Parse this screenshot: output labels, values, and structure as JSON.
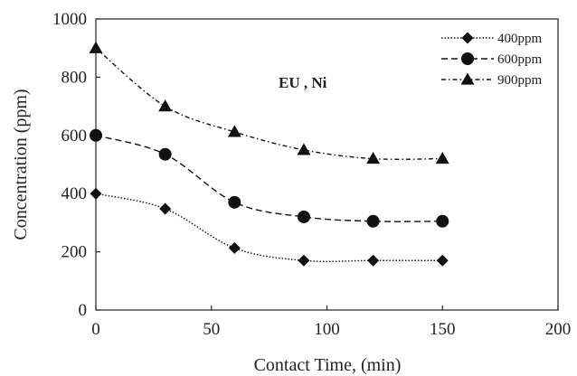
{
  "chart_data": {
    "type": "line",
    "title": "",
    "xlabel": "Contact Time, (min)",
    "ylabel": "Concentration (ppm)",
    "annotation": "EU , Ni",
    "xlim": [
      0,
      200
    ],
    "ylim": [
      0,
      1000
    ],
    "xticks": [
      0,
      50,
      100,
      150,
      200
    ],
    "yticks": [
      0,
      200,
      400,
      600,
      800,
      1000
    ],
    "grid": false,
    "legend_position": "top-right",
    "x": [
      0,
      30,
      60,
      90,
      120,
      150
    ],
    "series": [
      {
        "name": "400ppm",
        "marker": "diamond",
        "line_style": "dotted",
        "values": [
          400,
          348,
          213,
          170,
          170,
          170
        ]
      },
      {
        "name": "600ppm",
        "marker": "circle",
        "line_style": "dashed",
        "values": [
          600,
          535,
          370,
          320,
          305,
          305
        ]
      },
      {
        "name": "900ppm",
        "marker": "triangle",
        "line_style": "dash-dot",
        "values": [
          900,
          700,
          612,
          550,
          520,
          520
        ]
      }
    ],
    "colors": {
      "axis": "#222222",
      "series": "#111111"
    }
  }
}
